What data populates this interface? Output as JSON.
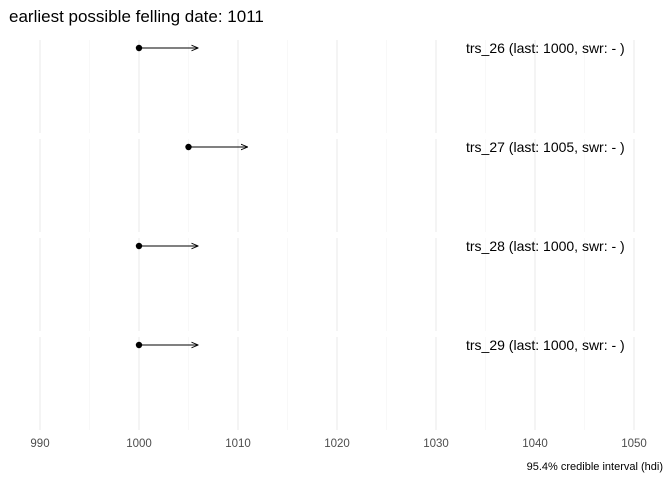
{
  "chart_data": {
    "type": "scatter",
    "title": "earliest possible felling date: 1011",
    "xlabel": "95.4% credible interval (hdi)",
    "ylabel": "",
    "xlim": [
      989.5,
      1051.5
    ],
    "x_major_ticks": [
      990,
      1000,
      1010,
      1020,
      1030,
      1040,
      1050
    ],
    "x_minor_ticks": [
      995,
      1005,
      1015,
      1025,
      1035,
      1045
    ],
    "grid": true,
    "series": [
      {
        "label": "trs_26 (last: 1000, swr: - )",
        "last": 1000,
        "arrow_to": 1006
      },
      {
        "label": "trs_27 (last: 1005, swr: - )",
        "last": 1005,
        "arrow_to": 1011
      },
      {
        "label": "trs_28 (last: 1000, swr: - )",
        "last": 1000,
        "arrow_to": 1006
      },
      {
        "label": "trs_29 (last: 1000, swr: - )",
        "last": 1000,
        "arrow_to": 1006
      }
    ]
  }
}
